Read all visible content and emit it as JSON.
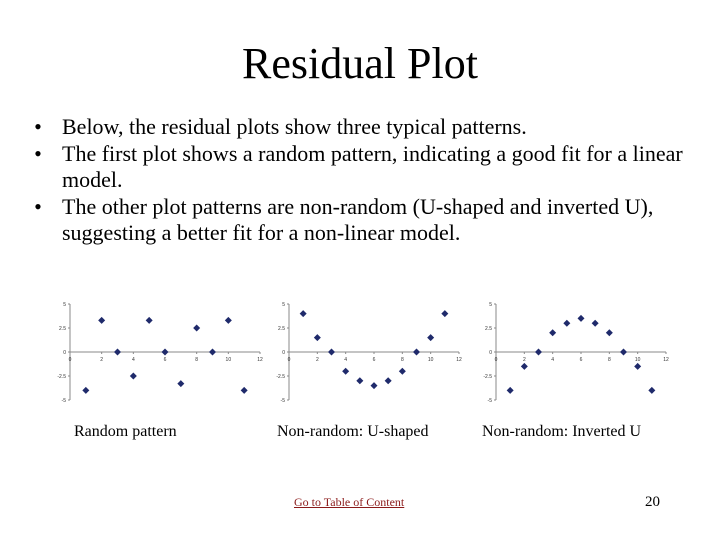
{
  "slide": {
    "title": "Residual Plot",
    "bullets": [
      "Below, the residual plots show three typical patterns.",
      "The first plot shows a random pattern, indicating a good fit for a linear model.",
      "The other plot patterns are non-random (U-shaped and inverted U), suggesting a better fit for a non-linear model."
    ],
    "bullet_symbol": "•",
    "captions": [
      "Random pattern",
      "Non-random: U-shaped",
      "Non-random: Inverted U"
    ],
    "toc_link": "Go to Table of Content",
    "page_number": "20",
    "link_color": "#8b1a1a",
    "marker_color": "#1f2a6b"
  },
  "chart_data": [
    {
      "type": "scatter",
      "title": "Random pattern",
      "x": [
        1,
        2,
        3,
        4,
        5,
        6,
        7,
        8,
        9,
        10,
        11
      ],
      "y": [
        -4,
        3.3,
        0,
        -2.5,
        3.3,
        0,
        -3.3,
        2.5,
        0,
        3.3,
        -4
      ],
      "xlim": [
        0,
        12
      ],
      "ylim": [
        -5,
        5
      ],
      "xticks": [
        "0",
        "2",
        "4",
        "6",
        "8",
        "10",
        "12"
      ],
      "yticks": [
        "5",
        "2.5",
        "0",
        "-2.5",
        "-5"
      ],
      "grid": false
    },
    {
      "type": "scatter",
      "title": "Non-random: U-shaped",
      "x": [
        1,
        2,
        3,
        4,
        5,
        6,
        7,
        8,
        9,
        10,
        11
      ],
      "y": [
        4,
        1.5,
        0,
        -2,
        -3,
        -3.5,
        -3,
        -2,
        0,
        1.5,
        4
      ],
      "xlim": [
        0,
        12
      ],
      "ylim": [
        -5,
        5
      ],
      "xticks": [
        "0",
        "2",
        "4",
        "6",
        "8",
        "10",
        "12"
      ],
      "yticks": [
        "5",
        "2.5",
        "0",
        "-2.5",
        "-5"
      ],
      "grid": false
    },
    {
      "type": "scatter",
      "title": "Non-random: Inverted U",
      "x": [
        1,
        2,
        3,
        4,
        5,
        6,
        7,
        8,
        9,
        10,
        11
      ],
      "y": [
        -4,
        -1.5,
        0,
        2,
        3,
        3.5,
        3,
        2,
        0,
        -1.5,
        -4
      ],
      "xlim": [
        0,
        12
      ],
      "ylim": [
        -5,
        5
      ],
      "xticks": [
        "0",
        "2",
        "4",
        "6",
        "8",
        "10",
        "12"
      ],
      "yticks": [
        "5",
        "2.5",
        "0",
        "-2.5",
        "-5"
      ],
      "grid": false
    }
  ]
}
